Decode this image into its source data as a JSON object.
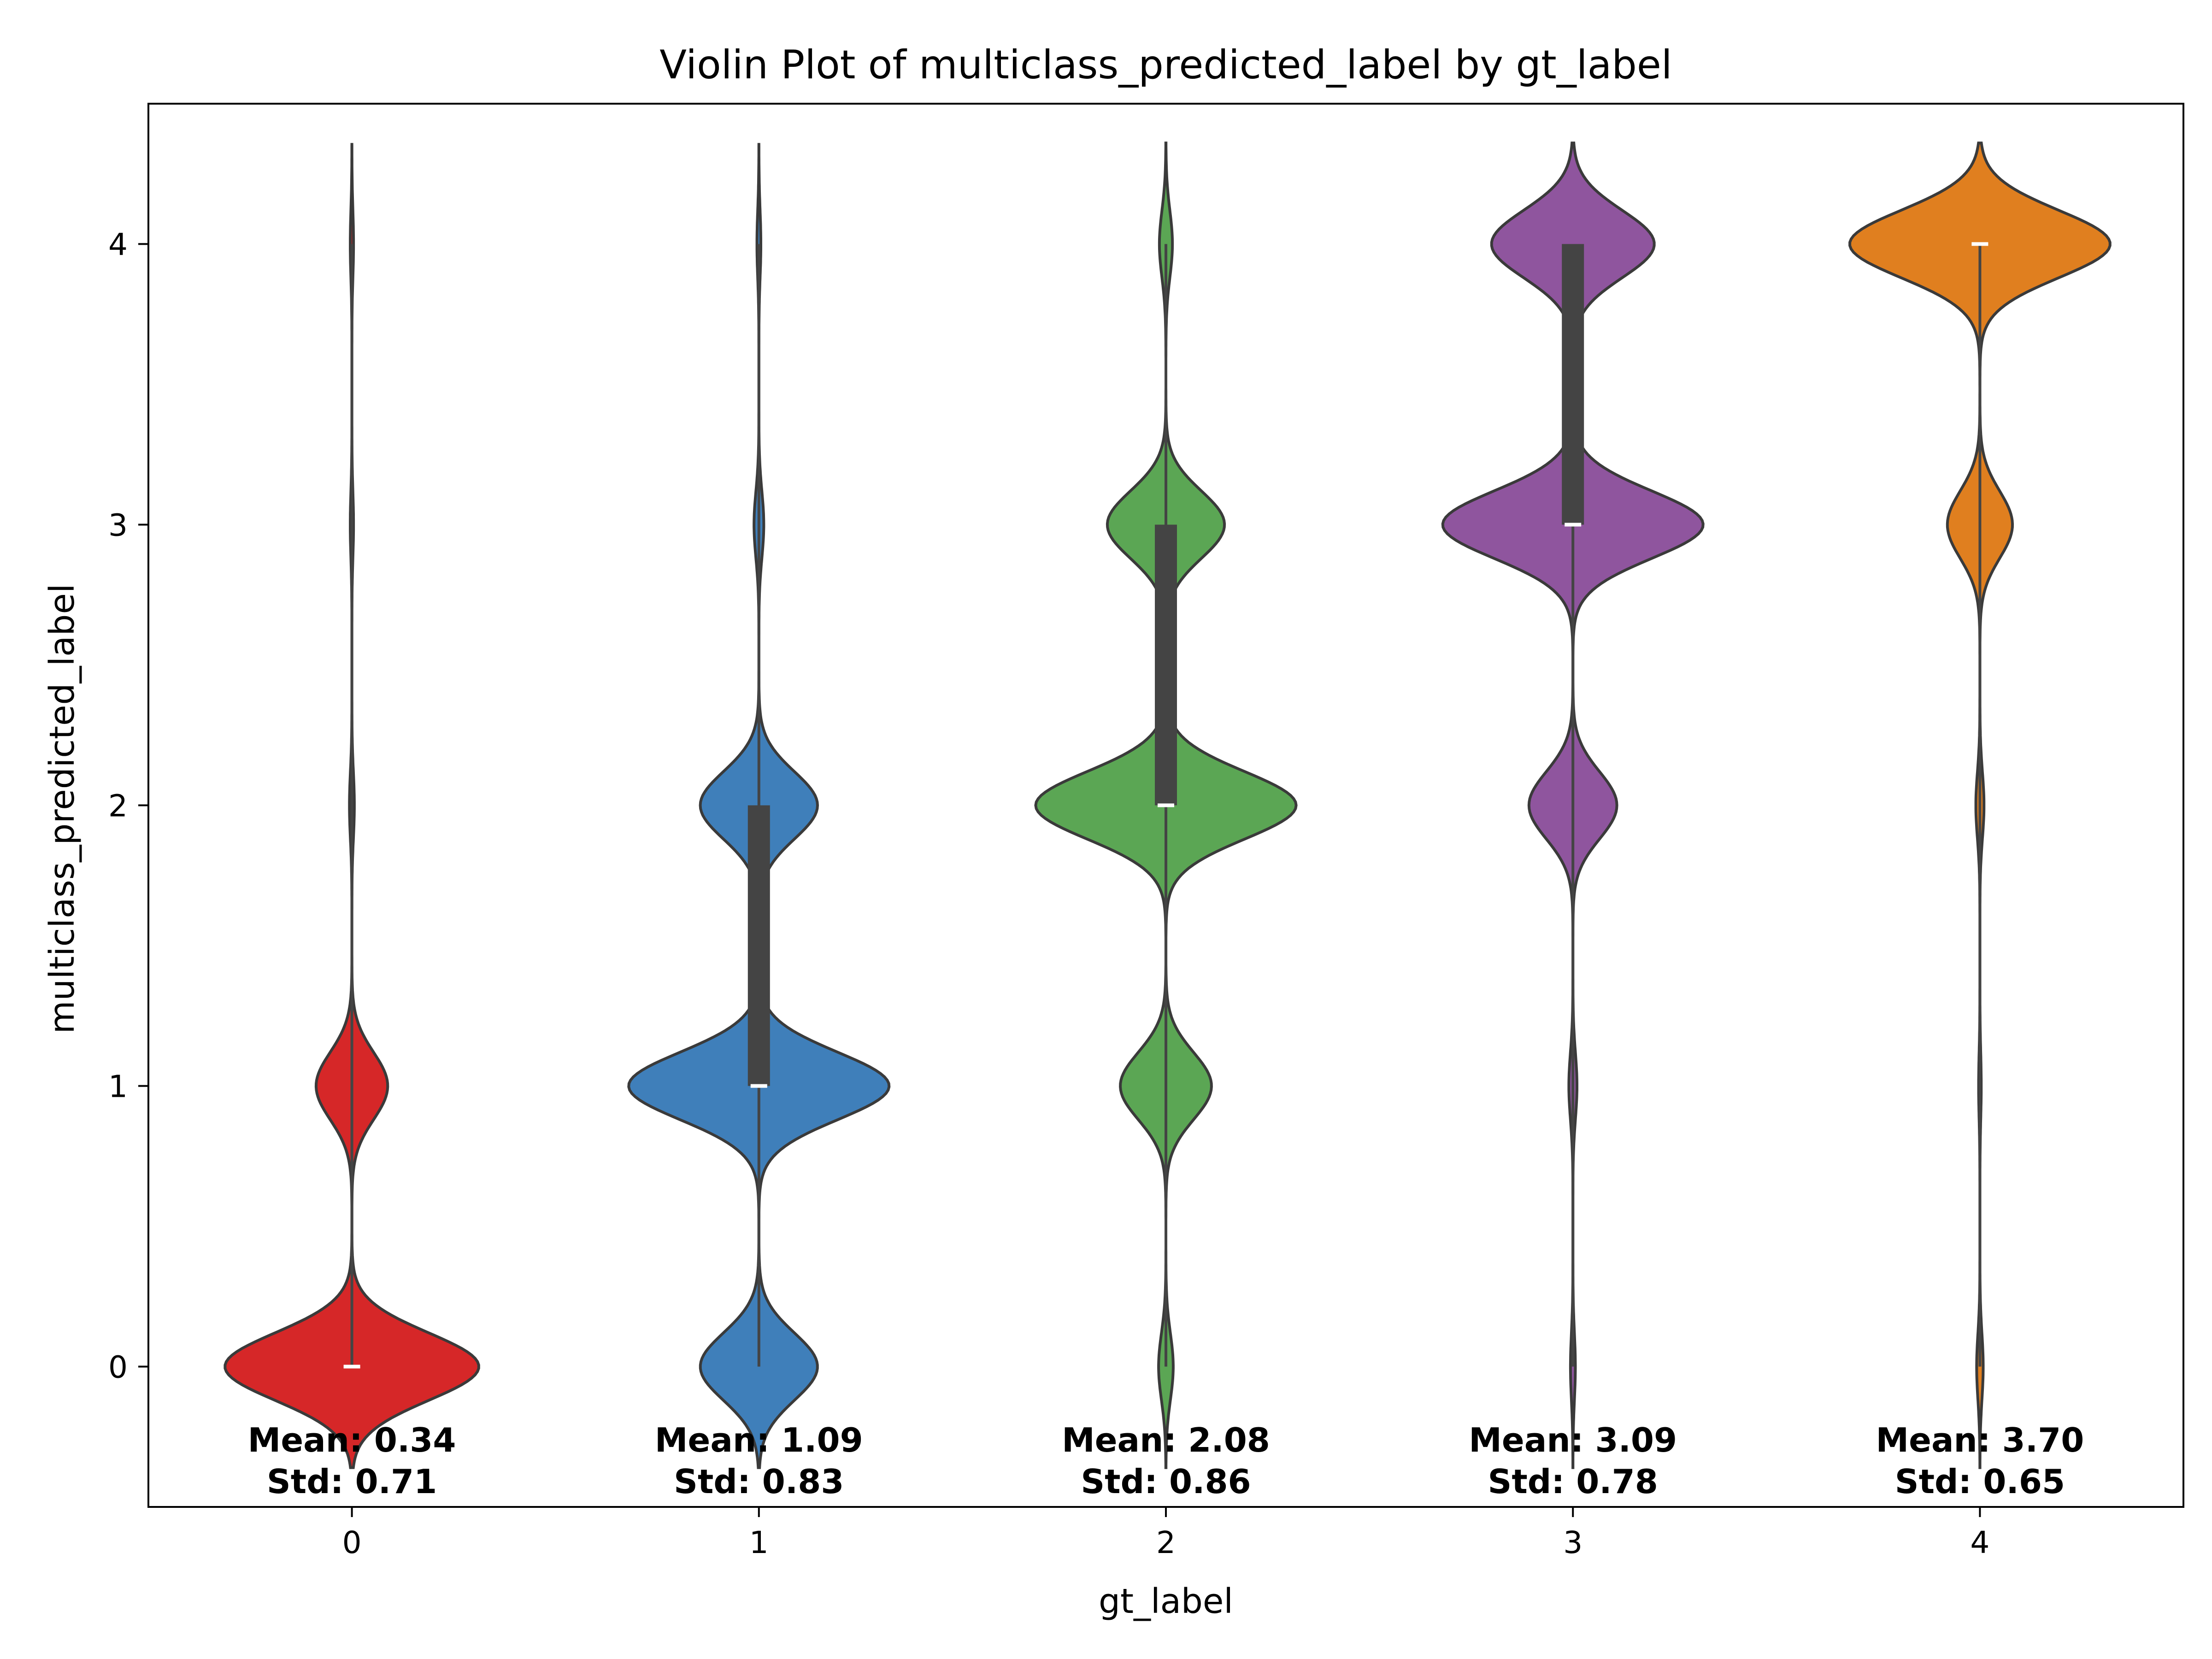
{
  "chart_data": {
    "type": "violin",
    "title": "Violin Plot of multiclass_predicted_label by gt_label",
    "xlabel": "gt_label",
    "ylabel": "multiclass_predicted_label",
    "categories": [
      "0",
      "1",
      "2",
      "3",
      "4"
    ],
    "yticks": [
      "0",
      "1",
      "2",
      "3",
      "4"
    ],
    "ylim": [
      -0.5,
      4.5
    ],
    "grid": false,
    "series": [
      {
        "category": "0",
        "color": "#d62728",
        "density": {
          "0": 0.78,
          "1": 0.22,
          "2": 0.015,
          "3": 0.01,
          "4": 0.01
        },
        "range": [
          0,
          4
        ],
        "median": 0,
        "q1": 0,
        "q3": 0,
        "mean_label": "Mean: 0.34",
        "std_label": "Std: 0.71"
      },
      {
        "category": "1",
        "color": "#3f7fba",
        "density": {
          "0": 0.36,
          "1": 0.8,
          "2": 0.36,
          "3": 0.03,
          "4": 0.012
        },
        "range": [
          0,
          4
        ],
        "median": 1,
        "q1": 1,
        "q3": 2,
        "mean_label": "Mean: 1.09",
        "std_label": "Std: 0.83"
      },
      {
        "category": "2",
        "color": "#5ba654",
        "density": {
          "0": 0.045,
          "1": 0.28,
          "2": 0.8,
          "3": 0.36,
          "4": 0.04
        },
        "range": [
          0,
          4
        ],
        "median": 2,
        "q1": 2,
        "q3": 3,
        "mean_label": "Mean: 2.08",
        "std_label": "Std: 0.86"
      },
      {
        "category": "3",
        "color": "#8f559e",
        "density": {
          "0": 0.015,
          "1": 0.025,
          "2": 0.27,
          "3": 0.8,
          "4": 0.5
        },
        "range": [
          0,
          4
        ],
        "median": 3,
        "q1": 3,
        "q3": 4,
        "mean_label": "Mean: 3.09",
        "std_label": "Std: 0.78"
      },
      {
        "category": "4",
        "color": "#e07f1f",
        "density": {
          "0": 0.02,
          "1": 0.008,
          "2": 0.025,
          "3": 0.2,
          "4": 0.8
        },
        "range": [
          0,
          4
        ],
        "median": 4,
        "q1": 4,
        "q3": 4,
        "mean_label": "Mean: 3.70",
        "std_label": "Std: 0.65"
      }
    ]
  }
}
